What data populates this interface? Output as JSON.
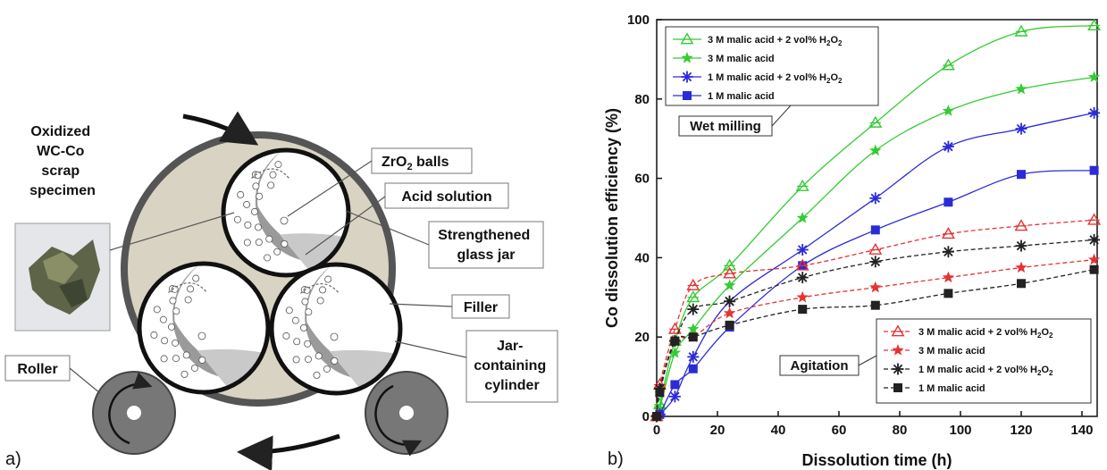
{
  "panel_a": {
    "label": "a)",
    "specimen_lines": [
      "Oxidized",
      "WC-Co",
      "scrap",
      "specimen"
    ],
    "zro2_main": "ZrO",
    "zro2_sub": "2",
    "zro2_rest": " balls",
    "acid_solution": "Acid solution",
    "glass_jar_lines": [
      "Strengthened",
      "glass jar"
    ],
    "filler": "Filler",
    "roller": "Roller",
    "cylinder_lines": [
      "Jar-",
      "containing",
      "cylinder"
    ]
  },
  "panel_b": {
    "label": "b)"
  },
  "chart_data": {
    "type": "line",
    "xlabel": "Dissolution time (h)",
    "ylabel": "Co dissolution efficiency (%)",
    "xlim": [
      0,
      145
    ],
    "ylim": [
      0,
      100
    ],
    "xticks": [
      "0",
      "20",
      "40",
      "60",
      "80",
      "100",
      "120",
      "140"
    ],
    "yticks": [
      "0",
      "20",
      "40",
      "60",
      "80",
      "100"
    ],
    "x": [
      0,
      1,
      6,
      12,
      24,
      48,
      72,
      96,
      120,
      144
    ],
    "annotations": [
      "Wet milling",
      "Agitation"
    ],
    "series": [
      {
        "name": "3 M malic acid + 2 vol% H2O2",
        "group": "wet",
        "color": "#33cc33",
        "marker": "triangle-open",
        "dash": "solid",
        "values": [
          0,
          3,
          19,
          30,
          38,
          58,
          74,
          88.5,
          97,
          98.5
        ]
      },
      {
        "name": "3 M malic acid",
        "group": "wet",
        "color": "#33cc33",
        "marker": "star",
        "dash": "solid",
        "values": [
          0,
          2,
          16,
          22,
          33,
          50,
          67,
          77,
          82.5,
          85.5
        ]
      },
      {
        "name": "1 M malic acid + 2 vol% H2O2",
        "group": "wet",
        "color": "#2b2bd9",
        "marker": "asterisk",
        "dash": "solid",
        "values": [
          0,
          0.5,
          5,
          15,
          29,
          42,
          55,
          68,
          72.5,
          76.5
        ]
      },
      {
        "name": "1 M malic acid",
        "group": "wet",
        "color": "#2b2bd9",
        "marker": "square",
        "dash": "solid",
        "values": [
          0,
          0.5,
          8,
          12,
          22.5,
          38,
          47,
          54,
          61,
          62
        ]
      },
      {
        "name": "3 M malic acid + 2 vol% H2O2",
        "group": "agitation",
        "color": "#e53333",
        "marker": "triangle-open",
        "dash": "dashed",
        "values": [
          0,
          8,
          22,
          33,
          36,
          38,
          42,
          46,
          48,
          49.5
        ]
      },
      {
        "name": "3 M malic acid",
        "group": "agitation",
        "color": "#e53333",
        "marker": "star",
        "dash": "dashed",
        "values": [
          0,
          7,
          19,
          20,
          26,
          30,
          32.5,
          35,
          37.5,
          39.5
        ]
      },
      {
        "name": "1 M malic acid + 2 vol% H2O2",
        "group": "agitation",
        "color": "#222222",
        "marker": "asterisk",
        "dash": "dashed",
        "values": [
          0,
          7,
          19,
          27,
          29,
          35,
          39,
          41.5,
          43,
          44.5
        ]
      },
      {
        "name": "1 M malic acid",
        "group": "agitation",
        "color": "#222222",
        "marker": "square",
        "dash": "dashed",
        "values": [
          0,
          6,
          19,
          20,
          23,
          27,
          28,
          31,
          33.5,
          37
        ]
      }
    ]
  }
}
